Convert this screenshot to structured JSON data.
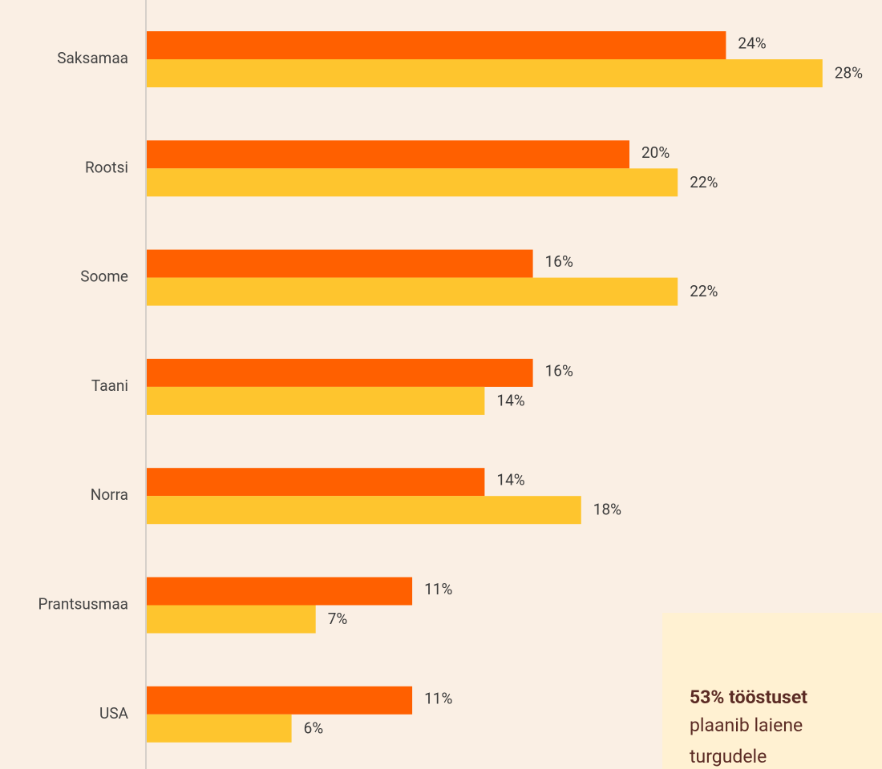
{
  "chart_data": {
    "type": "hbar",
    "categories": [
      "Saksamaa",
      "Rootsi",
      "Soome",
      "Taani",
      "Norra",
      "Prantsusmaa",
      "USA"
    ],
    "series": [
      {
        "color": "#ff6000",
        "values": [
          24,
          20,
          16,
          16,
          14,
          11,
          11
        ],
        "value_labels": [
          "24%",
          "20%",
          "16%",
          "16%",
          "14%",
          "11%",
          "11%"
        ]
      },
      {
        "color": "#fec52e",
        "values": [
          28,
          22,
          22,
          14,
          18,
          7,
          6
        ],
        "value_labels": [
          "28%",
          "22%",
          "22%",
          "14%",
          "18%",
          "7%",
          "6%"
        ]
      }
    ],
    "xlim": [
      0,
      30
    ],
    "annotation": {
      "title": "53% tööstuset",
      "lines": [
        "plaanib laiene",
        "turgudele"
      ]
    }
  }
}
